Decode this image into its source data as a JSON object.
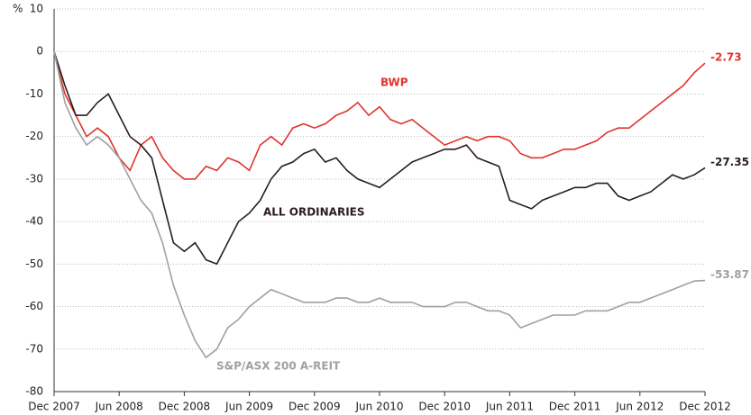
{
  "chart_data": {
    "type": "line",
    "y_label": "%",
    "categories": [
      "Dec 2007",
      null,
      null,
      null,
      null,
      null,
      "Jun 2008",
      null,
      null,
      null,
      null,
      null,
      "Dec 2008",
      null,
      null,
      null,
      null,
      null,
      "Jun 2009",
      null,
      null,
      null,
      null,
      null,
      "Dec 2009",
      null,
      null,
      null,
      null,
      null,
      "Jun 2010",
      null,
      null,
      null,
      null,
      null,
      "Dec 2010",
      null,
      null,
      null,
      null,
      null,
      "Jun 2011",
      null,
      null,
      null,
      null,
      null,
      "Dec 2011",
      null,
      null,
      null,
      null,
      null,
      "Jun 2012",
      null,
      null,
      null,
      null,
      null,
      "Dec 2012"
    ],
    "series": [
      {
        "name": "BWP",
        "color": "#e0342c",
        "values": [
          0,
          -10,
          -15,
          -20,
          -18,
          -20,
          -25,
          -28,
          -22,
          -20,
          -25,
          -28,
          -30,
          -30,
          -27,
          -28,
          -25,
          -26,
          -28,
          -22,
          -20,
          -22,
          -18,
          -17,
          -18,
          -17,
          -15,
          -14,
          -12,
          -15,
          -13,
          -16,
          -17,
          -16,
          -18,
          -20,
          -22,
          -21,
          -20,
          -21,
          -20,
          -20,
          -21,
          -24,
          -25,
          -25,
          -24,
          -23,
          -23,
          -22,
          -21,
          -19,
          -18,
          -18,
          -16,
          -14,
          -12,
          -10,
          -8,
          -5,
          -2.73
        ]
      },
      {
        "name": "ALL ORDINARIES",
        "color": "#2b1d1f",
        "values": [
          0,
          -8,
          -15,
          -15,
          -12,
          -10,
          -15,
          -20,
          -22,
          -25,
          -35,
          -45,
          -47,
          -45,
          -49,
          -50,
          -45,
          -40,
          -38,
          -35,
          -30,
          -27,
          -26,
          -24,
          -23,
          -26,
          -25,
          -28,
          -30,
          -31,
          -32,
          -30,
          -28,
          -26,
          -25,
          -24,
          -23,
          -23,
          -22,
          -25,
          -26,
          -27,
          -35,
          -36,
          -37,
          -35,
          -34,
          -33,
          -32,
          -32,
          -31,
          -31,
          -34,
          -35,
          -34,
          -33,
          -31,
          -29,
          -30,
          -29,
          -27.35
        ]
      },
      {
        "name": "S&P/ASX 200 A-REIT",
        "color": "#a0a0a0",
        "values": [
          0,
          -12,
          -18,
          -22,
          -20,
          -22,
          -25,
          -30,
          -35,
          -38,
          -45,
          -55,
          -62,
          -68,
          -72,
          -70,
          -65,
          -63,
          -60,
          -58,
          -56,
          -57,
          -58,
          -59,
          -59,
          -59,
          -58,
          -58,
          -59,
          -59,
          -58,
          -59,
          -59,
          -59,
          -60,
          -60,
          -60,
          -59,
          -59,
          -60,
          -61,
          -61,
          -62,
          -65,
          -64,
          -63,
          -62,
          -62,
          -62,
          -61,
          -61,
          -61,
          -60,
          -59,
          -59,
          -58,
          -57,
          -56,
          -55,
          -54,
          -53.87
        ]
      }
    ],
    "ylim": [
      -80,
      10
    ],
    "yticks": [
      10,
      0,
      -10,
      -20,
      -30,
      -40,
      -50,
      -60,
      -70,
      -80
    ],
    "grid": true
  }
}
